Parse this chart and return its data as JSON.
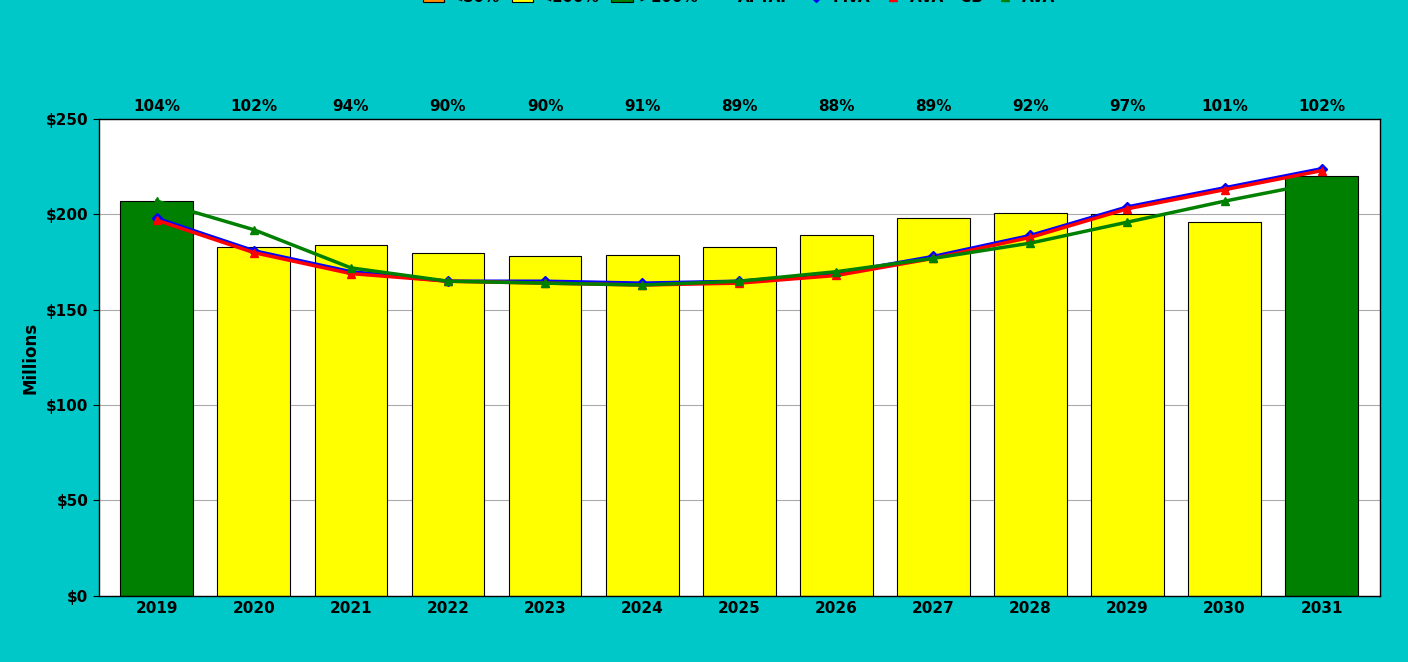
{
  "years": [
    2019,
    2020,
    2021,
    2022,
    2023,
    2024,
    2025,
    2026,
    2027,
    2028,
    2029,
    2030,
    2031
  ],
  "aftap_labels": [
    "104%",
    "102%",
    "94%",
    "90%",
    "90%",
    "91%",
    "89%",
    "88%",
    "89%",
    "92%",
    "97%",
    "101%",
    "102%"
  ],
  "bar_values": [
    207,
    183,
    184,
    180,
    178,
    179,
    183,
    189,
    198,
    201,
    200,
    196,
    220
  ],
  "bar_colors": [
    "#008000",
    "#ffff00",
    "#ffff00",
    "#ffff00",
    "#ffff00",
    "#ffff00",
    "#ffff00",
    "#ffff00",
    "#ffff00",
    "#ffff00",
    "#ffff00",
    "#ffff00",
    "#008000"
  ],
  "mva_values": [
    198,
    181,
    170,
    165,
    165,
    164,
    165,
    169,
    178,
    189,
    204,
    214,
    224
  ],
  "ava_cb_values": [
    197,
    180,
    169,
    165,
    164,
    163,
    164,
    168,
    177,
    188,
    203,
    213,
    223
  ],
  "ava_values": [
    207,
    192,
    172,
    165,
    164,
    163,
    165,
    170,
    177,
    185,
    196,
    207,
    217
  ],
  "mva_color": "#0000FF",
  "ava_cb_color": "#FF0000",
  "ava_color": "#008000",
  "bar_edge_color": "#000000",
  "ylabel": "Millions",
  "ylim": [
    0,
    250
  ],
  "yticks": [
    0,
    50,
    100,
    150,
    200,
    250
  ],
  "ytick_labels": [
    "$0",
    "$50",
    "$100",
    "$150",
    "$200",
    "$250"
  ],
  "background_color": "#ffffff",
  "outer_background": "#00C8C8",
  "grid_color": "#aaaaaa"
}
